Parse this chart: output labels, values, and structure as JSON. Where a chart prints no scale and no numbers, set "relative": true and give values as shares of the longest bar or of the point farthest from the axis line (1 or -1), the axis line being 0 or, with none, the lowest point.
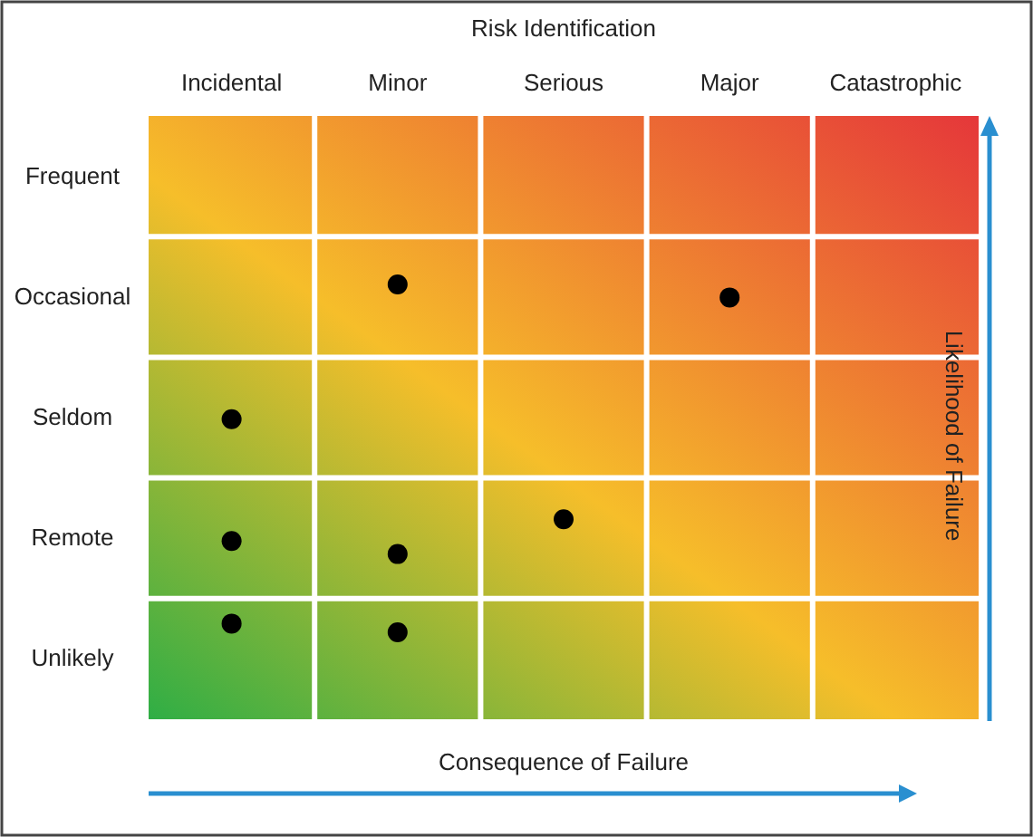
{
  "chart_data": {
    "type": "scatter",
    "title": "Risk Identification",
    "xlabel": "Consequence of Failure",
    "ylabel": "Likelihood of Failure",
    "categories": [
      "Incidental",
      "Minor",
      "Serious",
      "Major",
      "Catastrophic"
    ],
    "y_categories": [
      "Frequent",
      "Occasional",
      "Seldom",
      "Remote",
      "Unlikely"
    ],
    "relative": true,
    "series": [
      {
        "color": "#000000",
        "x": [
          "Minor",
          "Major",
          "Incidental",
          "Incidental",
          "Minor",
          "Serious",
          "Incidental",
          "Minor"
        ],
        "values": [
          1,
          0.97,
          0.69,
          0.41,
          0.38,
          0.46,
          0.22,
          0.2
        ]
      }
    ],
    "grid": true,
    "marker": "circle"
  }
}
